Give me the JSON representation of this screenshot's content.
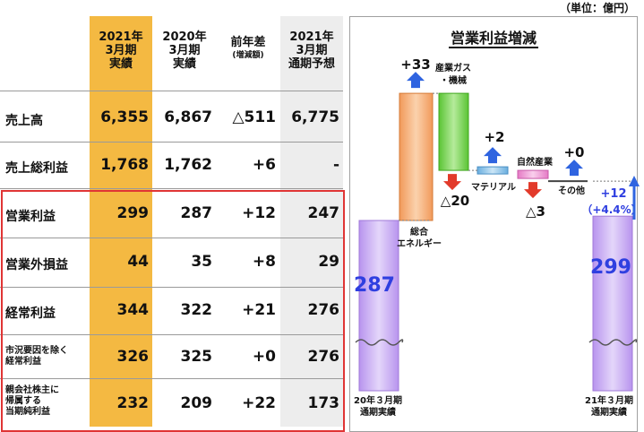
{
  "unit_label": "（単位：億円）",
  "table": {
    "headers": [
      {
        "lines": [
          "2021年",
          "3月期",
          "実績"
        ]
      },
      {
        "lines": [
          "2020年",
          "3月期",
          "実績"
        ]
      },
      {
        "lines": [
          "前年差",
          "(増減額)"
        ]
      },
      {
        "lines": [
          "2021年",
          "3月期",
          "通期予想"
        ]
      }
    ],
    "rows": [
      {
        "label": "売上高",
        "values": [
          "6,355",
          "6,867",
          "△511",
          "6,775"
        ]
      },
      {
        "label": "売上総利益",
        "values": [
          "1,768",
          "1,762",
          "+6",
          "-"
        ]
      },
      {
        "label": "営業利益",
        "values": [
          "299",
          "287",
          "+12",
          "247"
        ]
      },
      {
        "label": "営業外損益",
        "values": [
          "44",
          "35",
          "+8",
          "29"
        ]
      },
      {
        "label": "経常利益",
        "values": [
          "344",
          "322",
          "+21",
          "276"
        ]
      },
      {
        "label": "市況要因を除く経常利益",
        "label_lines": [
          "市況要因を除く",
          "経常利益"
        ],
        "values": [
          "326",
          "325",
          "+0",
          "276"
        ]
      },
      {
        "label": "親会社株主に帰属する当期純利益",
        "label_lines": [
          "親会社株主に",
          "帰属する",
          "当期純利益"
        ],
        "values": [
          "232",
          "209",
          "+22",
          "173"
        ]
      }
    ]
  },
  "chart_data": {
    "type": "waterfall",
    "title": "営業利益増減",
    "start": {
      "label": "20年３月期 通期実績",
      "label_lines": [
        "20年３月期",
        "通期実績"
      ],
      "value": 287
    },
    "steps": [
      {
        "label": "総合エネルギー",
        "label_lines": [
          "総合",
          "エネルギー"
        ],
        "increase": 33,
        "decrease": -20,
        "inc_text": "+33",
        "dec_text": "△20"
      },
      {
        "label": "産業ガス・機械",
        "label_lines": [
          "産業ガス",
          "・機械"
        ],
        "increase": 0,
        "decrease": 0,
        "inc_text": "",
        "dec_text": ""
      },
      {
        "label": "マテリアル",
        "label_lines": [
          "マテリアル"
        ],
        "increase": 2,
        "decrease": -3,
        "inc_text": "+2",
        "dec_text": "△3"
      },
      {
        "label": "自然産業",
        "label_lines": [
          "自然産業"
        ],
        "increase": 0,
        "decrease": 0,
        "inc_text": "",
        "dec_text": ""
      },
      {
        "label": "その他",
        "label_lines": [
          "その他"
        ],
        "increase": 0,
        "decrease": 0,
        "inc_text": "+0",
        "dec_text": ""
      }
    ],
    "end": {
      "label": "21年３月期 通期実績",
      "label_lines": [
        "21年３月期",
        "通期実績"
      ],
      "value": 299
    },
    "change": {
      "text": "+12",
      "pct_text": "（+4.4%）",
      "value": 12
    }
  },
  "colors": {
    "current_col": "#f4b942",
    "forecast_col": "#ededed",
    "red_box": "#e03535",
    "total_bar": "#c8a6f2",
    "energy_bar": "#f3a76a",
    "gas_bar": "#7ed957",
    "material_bar": "#8fc7ea",
    "nature_bar": "#ee8fcf",
    "up_arrow": "#2f64e0",
    "down_arrow": "#e23a2a",
    "value_blue": "#2f3fe0"
  }
}
